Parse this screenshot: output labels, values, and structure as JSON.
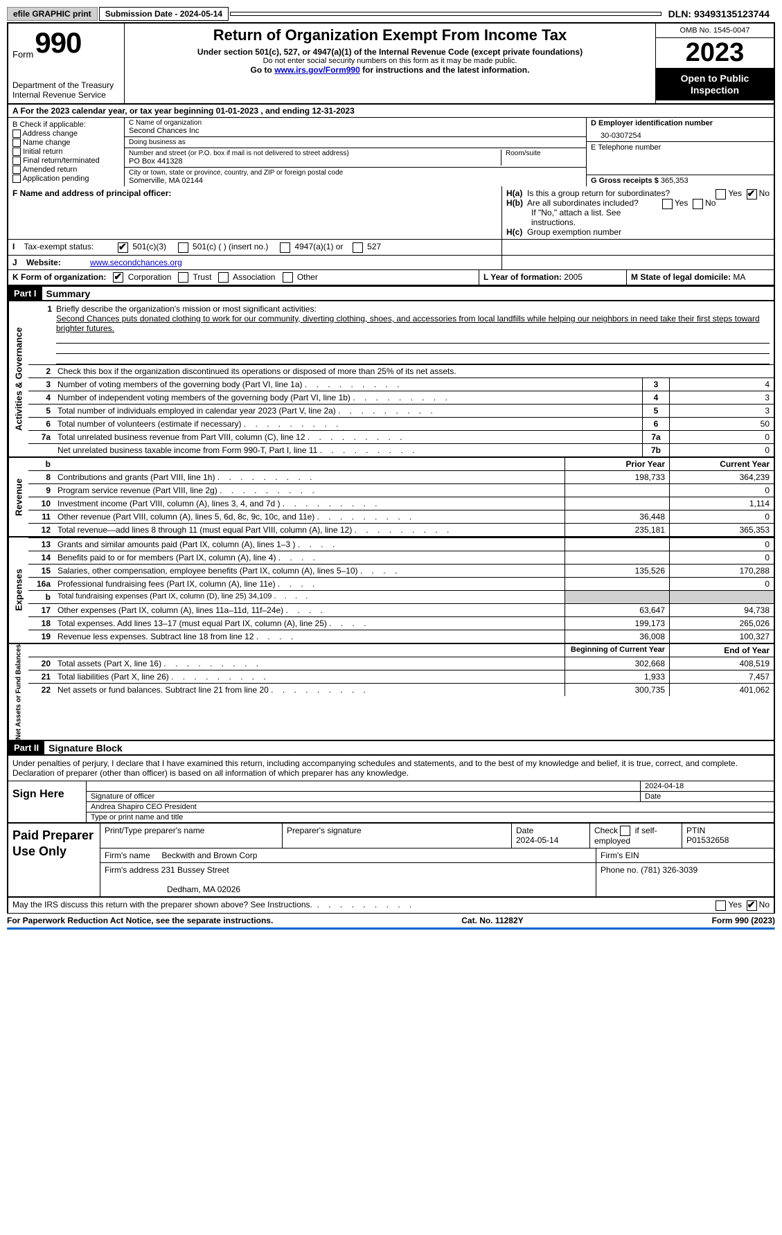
{
  "top_bar": {
    "efile": "efile GRAPHIC print",
    "submission": "Submission Date - 2024-05-14",
    "dln": "DLN: 93493135123744"
  },
  "header": {
    "form_word": "Form",
    "form_num": "990",
    "dept": "Department of the Treasury\nInternal Revenue Service",
    "title": "Return of Organization Exempt From Income Tax",
    "sub1": "Under section 501(c), 527, or 4947(a)(1) of the Internal Revenue Code (except private foundations)",
    "sub2": "Do not enter social security numbers on this form as it may be made public.",
    "sub3_pre": "Go to ",
    "sub3_link": "www.irs.gov/Form990",
    "sub3_post": " for instructions and the latest information.",
    "omb": "OMB No. 1545-0047",
    "year": "2023",
    "open": "Open to Public Inspection"
  },
  "section_a": "A For the 2023 calendar year, or tax year beginning 01-01-2023    , and ending 12-31-2023",
  "box_b": {
    "title": "B Check if applicable:",
    "opts": [
      "Address change",
      "Name change",
      "Initial return",
      "Final return/terminated",
      "Amended return",
      "Application pending"
    ]
  },
  "box_c": {
    "name_label": "C Name of organization",
    "name": "Second Chances Inc",
    "dba_label": "Doing business as",
    "dba": "",
    "street_label": "Number and street (or P.O. box if mail is not delivered to street address)",
    "street": "PO Box 441328",
    "room_label": "Room/suite",
    "city_label": "City or town, state or province, country, and ZIP or foreign postal code",
    "city": "Somerville, MA  02144"
  },
  "box_d": {
    "ein_label": "D Employer identification number",
    "ein": "30-0307254",
    "tel_label": "E Telephone number",
    "tel": "",
    "gross_label": "G Gross receipts $",
    "gross": "365,353"
  },
  "box_f": {
    "label": "F  Name and address of principal officer:",
    "value": ""
  },
  "box_h": {
    "ha": "Is this a group return for subordinates?",
    "hb": "Are all subordinates included?",
    "hb_note": "If \"No,\" attach a list. See instructions.",
    "hc": "Group exemption number",
    "ha_prefix": "H(a)",
    "hb_prefix": "H(b)",
    "hc_prefix": "H(c)"
  },
  "box_i": {
    "label": "Tax-exempt status:",
    "opts": [
      "501(c)(3)",
      "501(c) (  ) (insert no.)",
      "4947(a)(1) or",
      "527"
    ]
  },
  "box_j": {
    "label": "Website:",
    "value": "www.secondchances.org"
  },
  "box_k": {
    "label": "K Form of organization:",
    "opts": [
      "Corporation",
      "Trust",
      "Association",
      "Other"
    ]
  },
  "box_l": {
    "label": "L Year of formation:",
    "value": "2005"
  },
  "box_m": {
    "label": "M State of legal domicile:",
    "value": "MA"
  },
  "part1": {
    "num": "Part I",
    "title": "Summary"
  },
  "summary": {
    "q1_label": "Briefly describe the organization's mission or most significant activities:",
    "q1_text": "Second Chances puts donated clothing to work for our community, diverting clothing, shoes, and accessories from local landfills while helping our neighbors in need take their first steps toward brighter futures.",
    "q2": "Check this box       if the organization discontinued its operations or disposed of more than 25% of its net assets.",
    "lines_gov": [
      {
        "n": "3",
        "t": "Number of voting members of the governing body (Part VI, line 1a)",
        "k": "3",
        "v": "4"
      },
      {
        "n": "4",
        "t": "Number of independent voting members of the governing body (Part VI, line 1b)",
        "k": "4",
        "v": "3"
      },
      {
        "n": "5",
        "t": "Total number of individuals employed in calendar year 2023 (Part V, line 2a)",
        "k": "5",
        "v": "3"
      },
      {
        "n": "6",
        "t": "Total number of volunteers (estimate if necessary)",
        "k": "6",
        "v": "50"
      },
      {
        "n": "7a",
        "t": "Total unrelated business revenue from Part VIII, column (C), line 12",
        "k": "7a",
        "v": "0"
      },
      {
        "n": "",
        "t": "Net unrelated business taxable income from Form 990-T, Part I, line 11",
        "k": "7b",
        "v": "0"
      }
    ],
    "col_headers": {
      "prior": "Prior Year",
      "current": "Current Year"
    },
    "revenue": [
      {
        "n": "8",
        "t": "Contributions and grants (Part VIII, line 1h)",
        "p": "198,733",
        "c": "364,239"
      },
      {
        "n": "9",
        "t": "Program service revenue (Part VIII, line 2g)",
        "p": "",
        "c": "0"
      },
      {
        "n": "10",
        "t": "Investment income (Part VIII, column (A), lines 3, 4, and 7d )",
        "p": "",
        "c": "1,114"
      },
      {
        "n": "11",
        "t": "Other revenue (Part VIII, column (A), lines 5, 6d, 8c, 9c, 10c, and 11e)",
        "p": "36,448",
        "c": "0"
      },
      {
        "n": "12",
        "t": "Total revenue—add lines 8 through 11 (must equal Part VIII, column (A), line 12)",
        "p": "235,181",
        "c": "365,353"
      }
    ],
    "expenses": [
      {
        "n": "13",
        "t": "Grants and similar amounts paid (Part IX, column (A), lines 1–3 )",
        "p": "",
        "c": "0"
      },
      {
        "n": "14",
        "t": "Benefits paid to or for members (Part IX, column (A), line 4)",
        "p": "",
        "c": "0"
      },
      {
        "n": "15",
        "t": "Salaries, other compensation, employee benefits (Part IX, column (A), lines 5–10)",
        "p": "135,526",
        "c": "170,288"
      },
      {
        "n": "16a",
        "t": "Professional fundraising fees (Part IX, column (A), line 11e)",
        "p": "",
        "c": "0"
      },
      {
        "n": "b",
        "t": "Total fundraising expenses (Part IX, column (D), line 25) 34,109",
        "p": "SHADE",
        "c": "SHADE"
      },
      {
        "n": "17",
        "t": "Other expenses (Part IX, column (A), lines 11a–11d, 11f–24e)",
        "p": "63,647",
        "c": "94,738"
      },
      {
        "n": "18",
        "t": "Total expenses. Add lines 13–17 (must equal Part IX, column (A), line 25)",
        "p": "199,173",
        "c": "265,026"
      },
      {
        "n": "19",
        "t": "Revenue less expenses. Subtract line 18 from line 12",
        "p": "36,008",
        "c": "100,327"
      }
    ],
    "na_headers": {
      "begin": "Beginning of Current Year",
      "end": "End of Year"
    },
    "netassets": [
      {
        "n": "20",
        "t": "Total assets (Part X, line 16)",
        "p": "302,668",
        "c": "408,519"
      },
      {
        "n": "21",
        "t": "Total liabilities (Part X, line 26)",
        "p": "1,933",
        "c": "7,457"
      },
      {
        "n": "22",
        "t": "Net assets or fund balances. Subtract line 21 from line 20",
        "p": "300,735",
        "c": "401,062"
      }
    ]
  },
  "vtabs": {
    "gov": "Activities & Governance",
    "rev": "Revenue",
    "exp": "Expenses",
    "na": "Net Assets or Fund Balances"
  },
  "part2": {
    "num": "Part II",
    "title": "Signature Block"
  },
  "sig": {
    "perjury": "Under penalties of perjury, I declare that I have examined this return, including accompanying schedules and statements, and to the best of my knowledge and belief, it is true, correct, and complete. Declaration of preparer (other than officer) is based on all information of which preparer has any knowledge.",
    "sign_here": "Sign Here",
    "sig_officer": "Signature of officer",
    "date_label": "Date",
    "date": "2024-04-18",
    "name": "Andrea Shapiro CEO President",
    "name_label": "Type or print name and title"
  },
  "paid": {
    "label": "Paid Preparer Use Only",
    "print_label": "Print/Type preparer's name",
    "sig_label": "Preparer's signature",
    "date_label": "Date",
    "date": "2024-05-14",
    "check_label": "Check         if self-employed",
    "ptin_label": "PTIN",
    "ptin": "P01532658",
    "firm_name_label": "Firm's name",
    "firm_name": "Beckwith and Brown Corp",
    "firm_ein_label": "Firm's EIN",
    "firm_addr_label": "Firm's address",
    "firm_addr1": "231 Bussey Street",
    "firm_addr2": "Dedham, MA  02026",
    "phone_label": "Phone no.",
    "phone": "(781) 326-3039"
  },
  "footer": {
    "discuss": "May the IRS discuss this return with the preparer shown above? See Instructions.",
    "paperwork": "For Paperwork Reduction Act Notice, see the separate instructions.",
    "cat": "Cat. No. 11282Y",
    "form": "Form 990 (2023)"
  },
  "yn": {
    "yes": "Yes",
    "no": "No"
  }
}
